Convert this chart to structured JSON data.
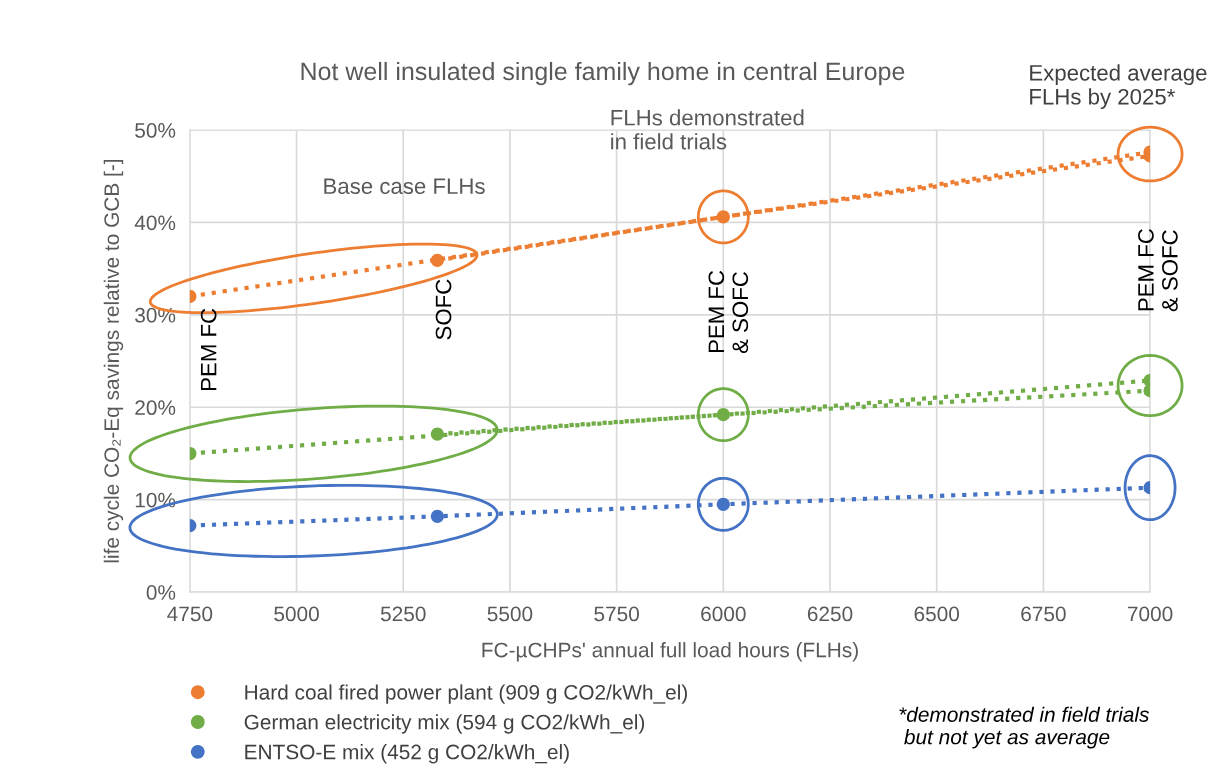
{
  "chart_data": {
    "type": "scatter",
    "title": "Not well insulated single family home in central Europe",
    "xlabel": "FC-µCHPs' annual full load hours (FLHs)",
    "ylabel": "life cycle CO₂-Eq savings relative to GCB [-]",
    "xlim": [
      4750,
      7000
    ],
    "xticks": [
      4750,
      5000,
      5250,
      5500,
      5750,
      6000,
      6250,
      6500,
      6750,
      7000
    ],
    "ylim": [
      0,
      50
    ],
    "yticks": [
      {
        "value": 0,
        "label": "0%"
      },
      {
        "value": 10,
        "label": "10%"
      },
      {
        "value": 20,
        "label": "20%"
      },
      {
        "value": 30,
        "label": "30%"
      },
      {
        "value": 40,
        "label": "40%"
      },
      {
        "value": 50,
        "label": "50%"
      }
    ],
    "grid": true,
    "legend": "bottom",
    "marker": "circle",
    "series": [
      {
        "name": "Hard coal fired power plant (909 g CO2/kWh_el)",
        "color": "#ed7d31",
        "x": [
          4750,
          5330,
          6000,
          7000,
          7000
        ],
        "values": [
          32.0,
          35.9,
          40.6,
          47.6,
          47.2
        ]
      },
      {
        "name": "German electricity mix (594 g CO2/kWh_el)",
        "color": "#70ad47",
        "x": [
          4750,
          5330,
          6000,
          7000,
          7000
        ],
        "values": [
          15.0,
          17.1,
          19.2,
          22.9,
          21.8
        ]
      },
      {
        "name": "ENTSO-E mix (452 g CO2/kWh_el)",
        "color": "#4472c4",
        "x": [
          4750,
          5330,
          6000,
          7000
        ],
        "values": [
          7.2,
          8.2,
          9.5,
          11.3
        ]
      },
      {
        "type": "line",
        "line_style": "dotted",
        "marker": "none",
        "color": "#ed7d31",
        "x": [
          4750,
          6000,
          7000
        ],
        "values": [
          32.0,
          40.6,
          47.2
        ]
      },
      {
        "type": "line",
        "line_style": "dotted",
        "marker": "none",
        "color": "#ed7d31",
        "x": [
          5330,
          6000,
          7000
        ],
        "values": [
          35.9,
          40.6,
          47.6
        ]
      },
      {
        "type": "line",
        "line_style": "dotted",
        "marker": "none",
        "color": "#70ad47",
        "x": [
          4750,
          6000,
          7000
        ],
        "values": [
          15.0,
          19.2,
          21.8
        ]
      },
      {
        "type": "line",
        "line_style": "dotted",
        "marker": "none",
        "color": "#70ad47",
        "x": [
          5330,
          6000,
          7000
        ],
        "values": [
          17.1,
          19.2,
          22.9
        ]
      },
      {
        "type": "line",
        "line_style": "dotted",
        "marker": "none",
        "color": "#4472c4",
        "x": [
          4750,
          5330,
          6000,
          7000
        ],
        "values": [
          7.2,
          8.2,
          9.5,
          11.3
        ]
      }
    ],
    "annotations": [
      "Base case FLHs",
      "FLHs demonstrated\nin field trials",
      "Expected average\nFLHs by 2025*",
      "*demonstrated in field trials\n but not yet as average",
      "PEM FC",
      "SOFC",
      "PEM FC\n& SOFC",
      "PEM FC\n& SOFC"
    ]
  }
}
